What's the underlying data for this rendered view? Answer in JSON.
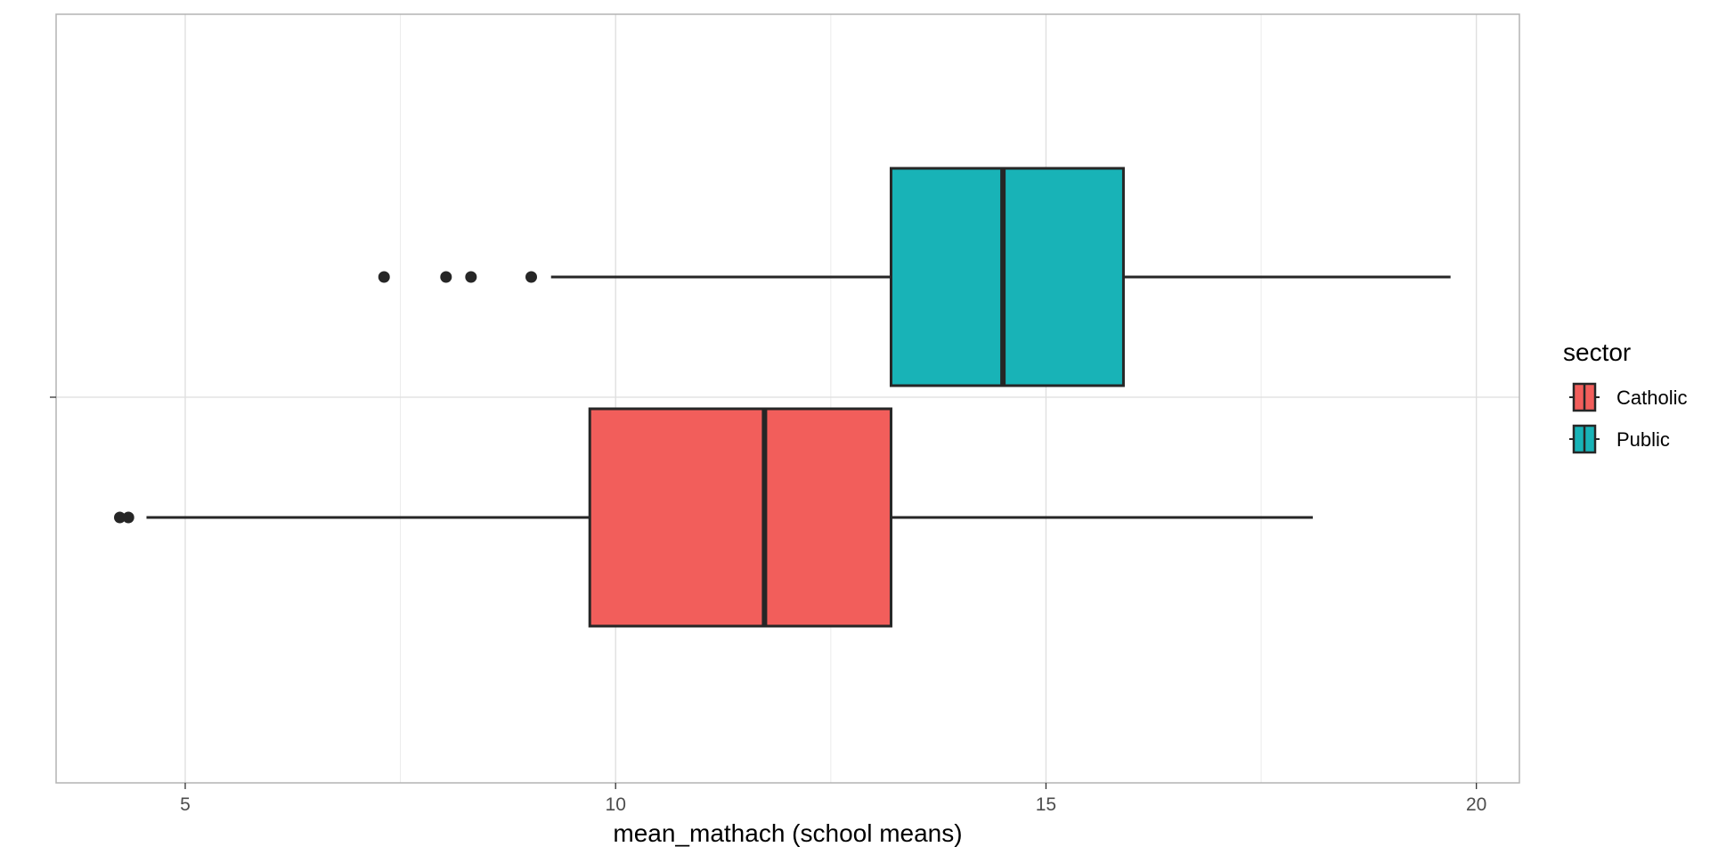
{
  "chart_data": {
    "type": "boxplot",
    "orientation": "horizontal",
    "xlabel": "mean_mathach (school means)",
    "ylabel": "",
    "xlim": [
      3.5,
      20.5
    ],
    "xticks": [
      5,
      10,
      15,
      20
    ],
    "xtick_labels": [
      "5",
      "10",
      "15",
      "20"
    ],
    "grid": true,
    "legend": {
      "title": "sector",
      "position": "right",
      "entries": [
        "Catholic",
        "Public"
      ]
    },
    "series": [
      {
        "name": "Catholic",
        "color": "#f25e5b",
        "whisker_low": 4.55,
        "q1": 9.7,
        "median": 11.73,
        "q3": 13.2,
        "whisker_high": 18.1,
        "outliers": [
          4.24,
          4.34
        ]
      },
      {
        "name": "Public",
        "color": "#18b3b7",
        "whisker_low": 9.25,
        "q1": 13.2,
        "median": 14.5,
        "q3": 15.9,
        "whisker_high": 19.7,
        "outliers": [
          7.31,
          8.03,
          8.32,
          9.02
        ]
      }
    ]
  }
}
